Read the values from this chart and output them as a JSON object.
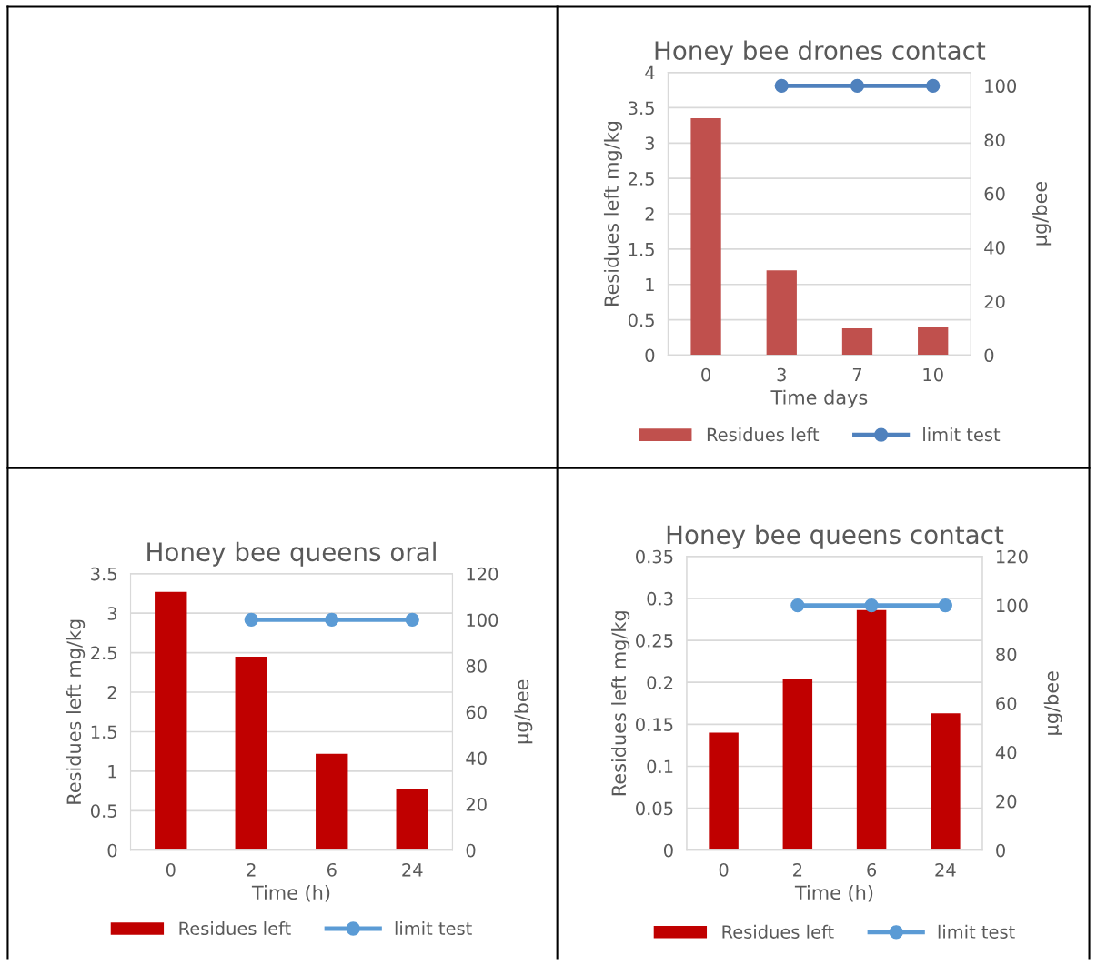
{
  "chart_data": [
    {
      "type": "bar",
      "title": "Honey bee drones contact",
      "xlabel": "Time days",
      "ylabel": "Residues left mg/kg",
      "y2label": "µg/bee",
      "categories": [
        "0",
        "3",
        "7",
        "10"
      ],
      "series": [
        {
          "name": "Residues left",
          "color": "#c0504d",
          "values": [
            3.35,
            1.2,
            0.38,
            0.4
          ]
        },
        {
          "name": "limit test",
          "type": "line",
          "axis": "y2",
          "marker": "circle",
          "color": "#4f81bd",
          "values": [
            null,
            100,
            100,
            100
          ]
        }
      ],
      "ylim": [
        0,
        4
      ],
      "yticks": [
        0,
        0.5,
        1,
        1.5,
        2,
        2.5,
        3,
        3.5,
        4
      ],
      "y2lim": [
        0,
        105
      ],
      "y2ticks": [
        0,
        20,
        40,
        60,
        80,
        100
      ],
      "grid": "y",
      "legend": "bottom"
    },
    {
      "type": "bar",
      "title": "Honey bee queens oral",
      "xlabel": "Time (h)",
      "ylabel": "Residues left mg/kg",
      "y2label": "µg/bee",
      "categories": [
        "0",
        "2",
        "6",
        "24"
      ],
      "series": [
        {
          "name": "Residues left",
          "color": "#c00000",
          "values": [
            3.27,
            2.45,
            1.22,
            0.77
          ]
        },
        {
          "name": "limit test",
          "type": "line",
          "axis": "y2",
          "marker": "circle",
          "color": "#5b9bd5",
          "values": [
            null,
            100,
            100,
            100
          ]
        }
      ],
      "ylim": [
        0,
        3.5
      ],
      "yticks": [
        0,
        0.5,
        1,
        1.5,
        2,
        2.5,
        3,
        3.5
      ],
      "y2lim": [
        0,
        120
      ],
      "y2ticks": [
        0,
        20,
        40,
        60,
        80,
        100,
        120
      ],
      "grid": "y",
      "legend": "bottom"
    },
    {
      "type": "bar",
      "title": "Honey bee queens contact",
      "xlabel": "Time (h)",
      "ylabel": "Residues left mg/kg",
      "y2label": "µg/bee",
      "categories": [
        "0",
        "2",
        "6",
        "24"
      ],
      "series": [
        {
          "name": "Residues left",
          "color": "#c00000",
          "values": [
            0.14,
            0.204,
            0.286,
            0.163
          ]
        },
        {
          "name": "limit test",
          "type": "line",
          "axis": "y2",
          "marker": "circle",
          "color": "#5b9bd5",
          "values": [
            null,
            100,
            100,
            100
          ]
        }
      ],
      "ylim": [
        0,
        0.35
      ],
      "yticks": [
        0,
        0.05,
        0.1,
        0.15,
        0.2,
        0.25,
        0.3,
        0.35
      ],
      "y2lim": [
        0,
        120
      ],
      "y2ticks": [
        0,
        20,
        40,
        60,
        80,
        100,
        120
      ],
      "grid": "y",
      "legend": "bottom"
    }
  ]
}
